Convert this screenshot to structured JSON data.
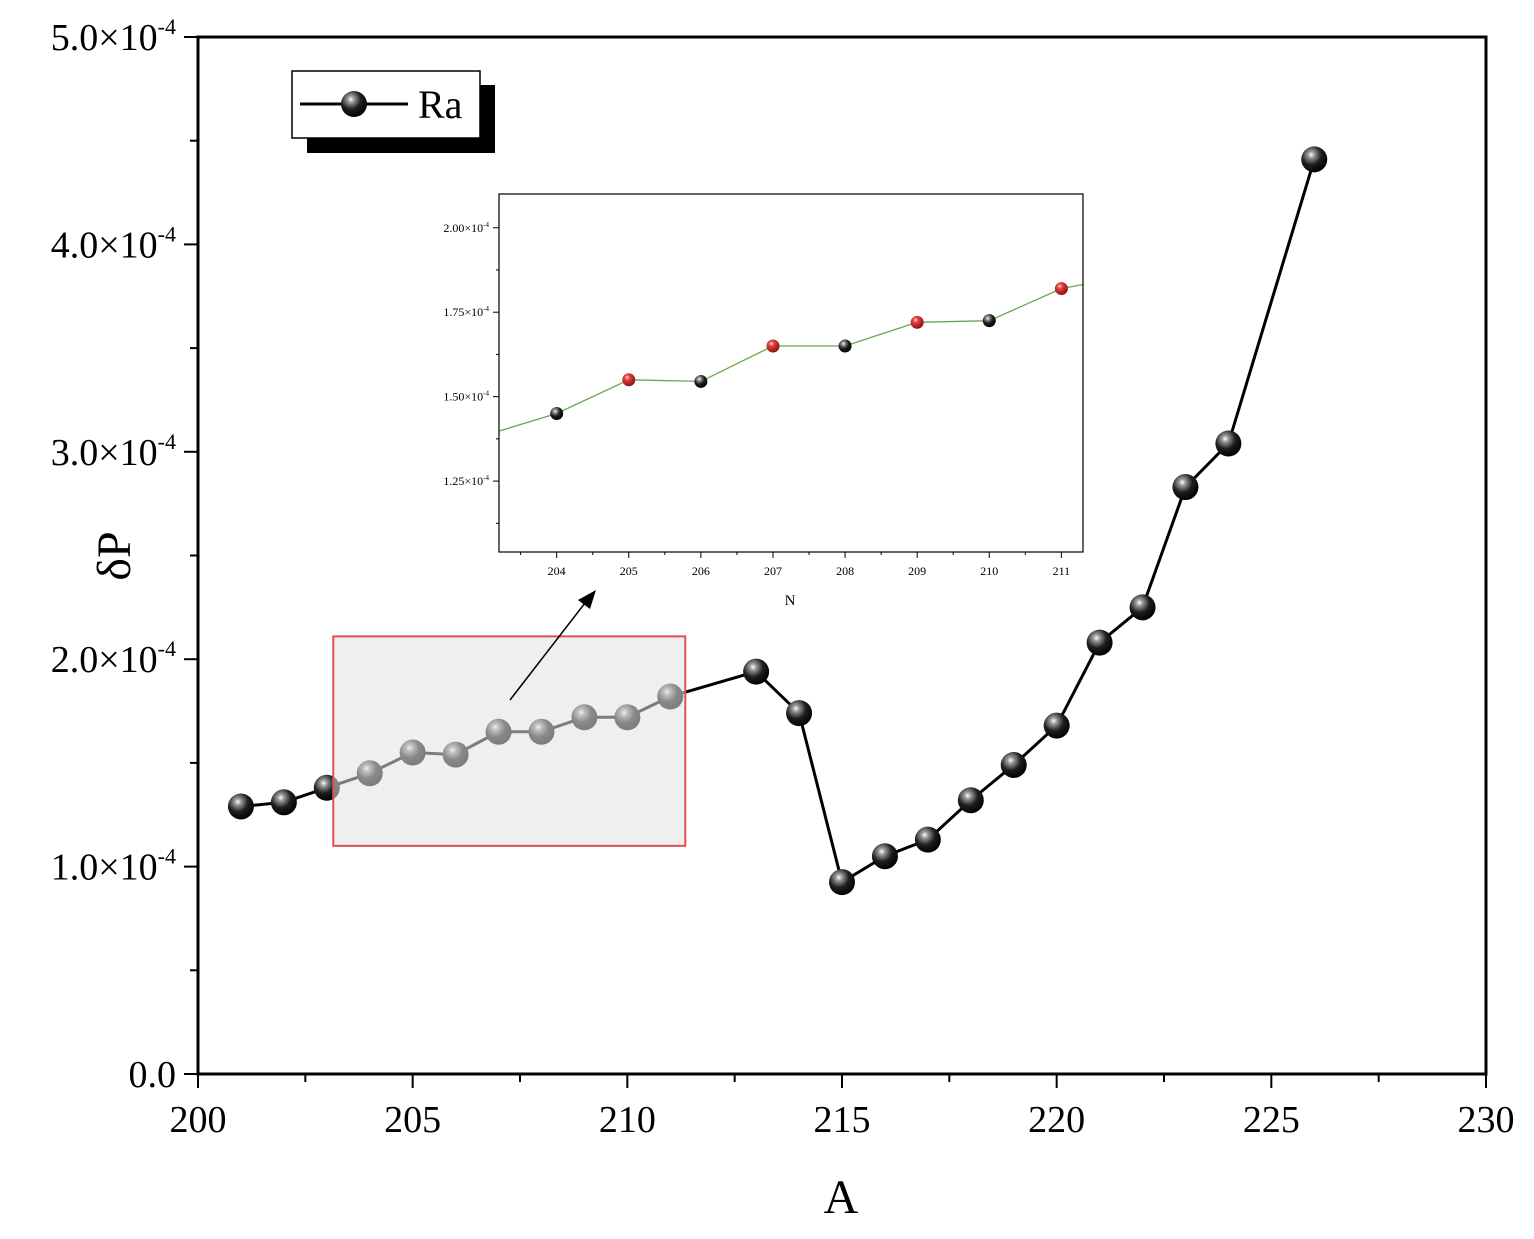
{
  "chart_data": [
    {
      "type": "line",
      "xlabel": "A",
      "ylabel": "δP",
      "xlim": [
        200,
        230
      ],
      "ylim": [
        0,
        0.0005
      ],
      "x_ticks": [
        200,
        205,
        210,
        215,
        220,
        225,
        230
      ],
      "x_tick_labels": [
        "200",
        "205",
        "210",
        "215",
        "220",
        "225",
        "230"
      ],
      "y_ticks": [
        0,
        0.0001,
        0.0002,
        0.0003,
        0.0004,
        0.0005
      ],
      "y_tick_labels": [
        {
          "mantissa": "0.0",
          "exponent": ""
        },
        {
          "mantissa": "1.0×10",
          "exponent": "-4"
        },
        {
          "mantissa": "2.0×10",
          "exponent": "-4"
        },
        {
          "mantissa": "3.0×10",
          "exponent": "-4"
        },
        {
          "mantissa": "4.0×10",
          "exponent": "-4"
        },
        {
          "mantissa": "5.0×10",
          "exponent": "-4"
        }
      ],
      "legend": {
        "position": "top-left",
        "entries": [
          "Ra"
        ]
      },
      "series": [
        {
          "name": "Ra",
          "color": "#000000",
          "x": [
            201,
            202,
            203,
            204,
            205,
            206,
            207,
            208,
            209,
            210,
            211,
            213,
            214,
            215,
            216,
            217,
            218,
            219,
            220,
            221,
            222,
            223,
            224,
            226
          ],
          "y": [
            0.000129,
            0.000131,
            0.000138,
            0.000145,
            0.000155,
            0.000154,
            0.000165,
            0.000165,
            0.000172,
            0.000172,
            0.000182,
            0.000194,
            0.000174,
            9.25e-05,
            0.000105,
            0.000113,
            0.000132,
            0.000149,
            0.000168,
            0.000208,
            0.000225,
            0.000283,
            0.000304,
            0.000441
          ]
        }
      ],
      "highlight_region": {
        "x": [
          203.15,
          211.35
        ],
        "y": [
          0.00011,
          0.000211
        ],
        "fill": "#e2e2e2",
        "stroke": "#e05050"
      }
    },
    {
      "type": "line",
      "role": "inset",
      "xlabel": "N",
      "ylabel": "",
      "xlim": [
        203.2,
        211.3
      ],
      "ylim": [
        0.000104,
        0.00021
      ],
      "x_ticks": [
        204,
        205,
        206,
        207,
        208,
        209,
        210,
        211
      ],
      "x_tick_labels": [
        "204",
        "205",
        "206",
        "207",
        "208",
        "209",
        "210",
        "211"
      ],
      "y_ticks": [
        0.000125,
        0.00015,
        0.000175,
        0.0002
      ],
      "y_tick_labels": [
        {
          "mantissa": "1.25×10",
          "exponent": "-4"
        },
        {
          "mantissa": "1.50×10",
          "exponent": "-4"
        },
        {
          "mantissa": "1.75×10",
          "exponent": "-4"
        },
        {
          "mantissa": "2.00×10",
          "exponent": "-4"
        }
      ],
      "series": [
        {
          "line_color": "#6aa84f",
          "x": [
            203.0,
            204,
            205,
            206,
            207,
            208,
            209,
            210,
            211,
            211.5
          ],
          "y": [
            0.0001385,
            0.000145,
            0.000155,
            0.0001545,
            0.000165,
            0.000165,
            0.000172,
            0.0001725,
            0.000182,
            0.000184
          ],
          "marker_colors": [
            "",
            "#000000",
            "#cc2222",
            "#000000",
            "#cc2222",
            "#000000",
            "#cc2222",
            "#000000",
            "#cc2222",
            ""
          ]
        }
      ]
    }
  ]
}
